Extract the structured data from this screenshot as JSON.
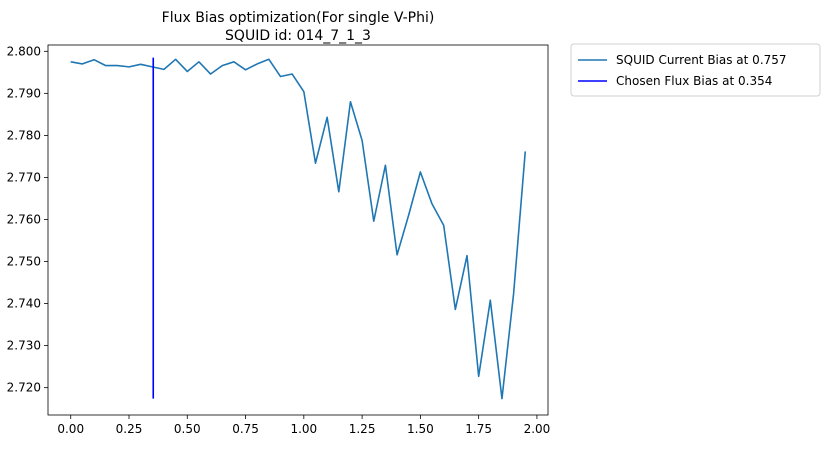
{
  "chart_data": {
    "type": "line",
    "title": "Flux Bias optimization(For single V-Phi)",
    "subtitle": "SQUID id: 014_7_1_3",
    "xlabel": "",
    "ylabel": "",
    "xlim": [
      -0.0975,
      2.0475
    ],
    "ylim": [
      2.7135,
      2.8015
    ],
    "xticks": [
      0.0,
      0.25,
      0.5,
      0.75,
      1.0,
      1.25,
      1.5,
      1.75,
      2.0
    ],
    "xtick_labels": [
      "0.00",
      "0.25",
      "0.50",
      "0.75",
      "1.00",
      "1.25",
      "1.50",
      "1.75",
      "2.00"
    ],
    "yticks": [
      2.72,
      2.73,
      2.74,
      2.75,
      2.76,
      2.77,
      2.78,
      2.79,
      2.8
    ],
    "ytick_labels": [
      "2.720",
      "2.730",
      "2.740",
      "2.750",
      "2.760",
      "2.770",
      "2.780",
      "2.790",
      "2.800"
    ],
    "grid": false,
    "legend_position": "outside-top-right",
    "series": [
      {
        "name": "SQUID Current Bias at 0.757",
        "color": "#1f77b4",
        "x": [
          0.0,
          0.05,
          0.1,
          0.15,
          0.2,
          0.25,
          0.3,
          0.35,
          0.4,
          0.45,
          0.5,
          0.55,
          0.6,
          0.65,
          0.7,
          0.75,
          0.8,
          0.85,
          0.9,
          0.95,
          1.0,
          1.05,
          1.1,
          1.15,
          1.2,
          1.25,
          1.3,
          1.35,
          1.4,
          1.45,
          1.5,
          1.55,
          1.6,
          1.65,
          1.7,
          1.75,
          1.8,
          1.85,
          1.9,
          1.95
        ],
        "y": [
          2.7975,
          2.797,
          2.798,
          2.7966,
          2.7966,
          2.7963,
          2.7969,
          2.7963,
          2.7957,
          2.7981,
          2.7952,
          2.7975,
          2.7946,
          2.7966,
          2.7975,
          2.7956,
          2.797,
          2.7981,
          2.794,
          2.7946,
          2.7904,
          2.7734,
          2.7843,
          2.7666,
          2.788,
          2.7788,
          2.7596,
          2.7729,
          2.7516,
          2.7611,
          2.7713,
          2.7637,
          2.7586,
          2.7386,
          2.7514,
          2.7227,
          2.7408,
          2.7174,
          2.7424,
          2.7762
        ]
      },
      {
        "name": "Chosen Flux Bias at 0.354",
        "color": "#0000ff",
        "type": "vline",
        "x": 0.354,
        "y_range": [
          2.7174,
          2.7985
        ]
      }
    ]
  }
}
